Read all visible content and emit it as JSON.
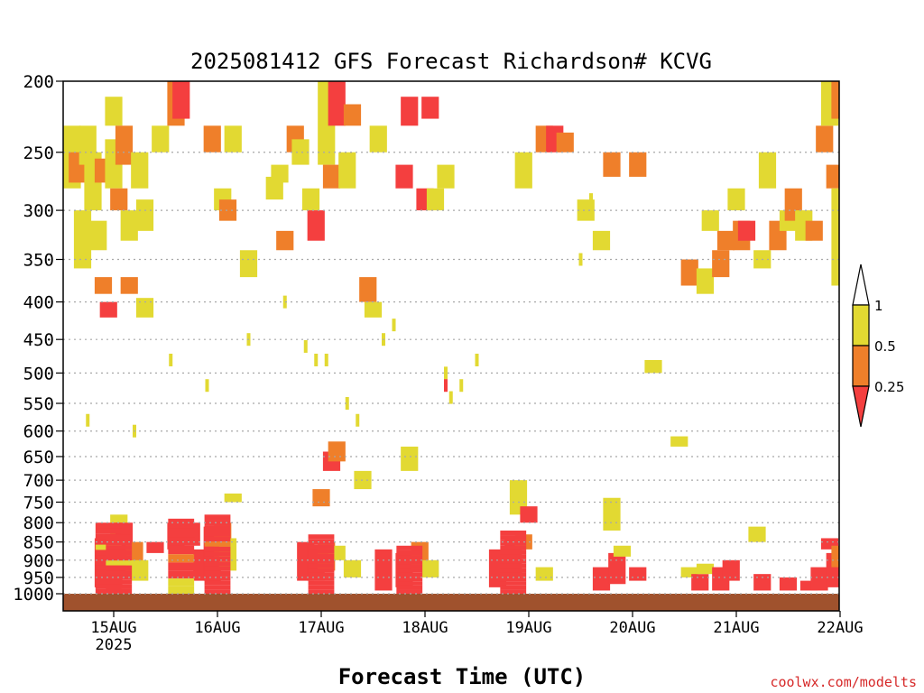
{
  "chart_data": {
    "type": "heatmap",
    "title": "2025081412 GFS Forecast Richardson# KCVG",
    "xlabel": "Forecast Time (UTC)",
    "ylabel": "",
    "credit": "coolwx.com/modelts",
    "y_scale": "log",
    "y_reversed": true,
    "ylim": [
      200,
      1000
    ],
    "y_ticks": [
      200,
      250,
      300,
      350,
      400,
      450,
      500,
      550,
      600,
      650,
      700,
      750,
      800,
      850,
      900,
      950,
      1000
    ],
    "x_ticks": [
      "15AUG",
      "16AUG",
      "17AUG",
      "18AUG",
      "19AUG",
      "20AUG",
      "21AUG",
      "22AUG"
    ],
    "x_tick_sublabel": "2025",
    "grid": "dotted horizontal at each pressure level",
    "colorbar": {
      "levels": [
        "1",
        "0.5",
        "0.25"
      ],
      "bins": [
        {
          "range": "0.5-1",
          "color": "#e2d932"
        },
        {
          "range": "0.25-0.5",
          "color": "#ef7f2a"
        },
        {
          "range": "<0.25",
          "color": "#f43f3f"
        }
      ],
      "upper_extension_color": "#ffffff",
      "lower_extension_color": "#f43f3f"
    },
    "ground_color": "#a0522d",
    "cells": [
      {
        "t": 14.6,
        "p1": 230,
        "p2": 280,
        "c": "y"
      },
      {
        "t": 14.65,
        "p1": 250,
        "p2": 275,
        "c": "o"
      },
      {
        "t": 14.7,
        "p1": 300,
        "p2": 360,
        "c": "y"
      },
      {
        "t": 14.75,
        "p1": 230,
        "p2": 260,
        "c": "y"
      },
      {
        "t": 14.8,
        "p1": 250,
        "p2": 300,
        "c": "y"
      },
      {
        "t": 14.85,
        "p1": 310,
        "p2": 340,
        "c": "y"
      },
      {
        "t": 14.9,
        "p1": 255,
        "p2": 275,
        "c": "o"
      },
      {
        "t": 14.9,
        "p1": 370,
        "p2": 390,
        "c": "o"
      },
      {
        "t": 14.95,
        "p1": 400,
        "p2": 420,
        "c": "r"
      },
      {
        "t": 15.0,
        "p1": 210,
        "p2": 230,
        "c": "y"
      },
      {
        "t": 15.0,
        "p1": 240,
        "p2": 280,
        "c": "y"
      },
      {
        "t": 15.05,
        "p1": 280,
        "p2": 300,
        "c": "o"
      },
      {
        "t": 15.1,
        "p1": 230,
        "p2": 260,
        "c": "o"
      },
      {
        "t": 15.15,
        "p1": 300,
        "p2": 330,
        "c": "y"
      },
      {
        "t": 15.15,
        "p1": 370,
        "p2": 390,
        "c": "o"
      },
      {
        "t": 15.25,
        "p1": 250,
        "p2": 280,
        "c": "y"
      },
      {
        "t": 15.3,
        "p1": 290,
        "p2": 320,
        "c": "y"
      },
      {
        "t": 15.3,
        "p1": 395,
        "p2": 420,
        "c": "y"
      },
      {
        "t": 15.45,
        "p1": 230,
        "p2": 250,
        "c": "y"
      },
      {
        "t": 15.6,
        "p1": 200,
        "p2": 230,
        "c": "o"
      },
      {
        "t": 15.65,
        "p1": 200,
        "p2": 225,
        "c": "r"
      },
      {
        "t": 15.95,
        "p1": 230,
        "p2": 250,
        "c": "o"
      },
      {
        "t": 16.05,
        "p1": 280,
        "p2": 300,
        "c": "y"
      },
      {
        "t": 16.1,
        "p1": 290,
        "p2": 310,
        "c": "o"
      },
      {
        "t": 16.15,
        "p1": 230,
        "p2": 250,
        "c": "y"
      },
      {
        "t": 16.3,
        "p1": 340,
        "p2": 370,
        "c": "y"
      },
      {
        "t": 16.55,
        "p1": 270,
        "p2": 290,
        "c": "y"
      },
      {
        "t": 16.6,
        "p1": 260,
        "p2": 275,
        "c": "y"
      },
      {
        "t": 16.65,
        "p1": 320,
        "p2": 340,
        "c": "o"
      },
      {
        "t": 16.75,
        "p1": 230,
        "p2": 250,
        "c": "o"
      },
      {
        "t": 16.8,
        "p1": 240,
        "p2": 260,
        "c": "y"
      },
      {
        "t": 16.9,
        "p1": 280,
        "p2": 300,
        "c": "y"
      },
      {
        "t": 16.95,
        "p1": 300,
        "p2": 330,
        "c": "r"
      },
      {
        "t": 17.05,
        "p1": 200,
        "p2": 260,
        "c": "y"
      },
      {
        "t": 17.1,
        "p1": 260,
        "p2": 280,
        "c": "o"
      },
      {
        "t": 17.15,
        "p1": 200,
        "p2": 230,
        "c": "r"
      },
      {
        "t": 17.25,
        "p1": 250,
        "p2": 280,
        "c": "y"
      },
      {
        "t": 17.3,
        "p1": 215,
        "p2": 230,
        "c": "o"
      },
      {
        "t": 17.45,
        "p1": 370,
        "p2": 400,
        "c": "o"
      },
      {
        "t": 17.5,
        "p1": 400,
        "p2": 420,
        "c": "y"
      },
      {
        "t": 17.55,
        "p1": 230,
        "p2": 250,
        "c": "y"
      },
      {
        "t": 17.8,
        "p1": 260,
        "p2": 280,
        "c": "r"
      },
      {
        "t": 17.85,
        "p1": 210,
        "p2": 230,
        "c": "r"
      },
      {
        "t": 18.0,
        "p1": 280,
        "p2": 300,
        "c": "r"
      },
      {
        "t": 18.05,
        "p1": 210,
        "p2": 225,
        "c": "r"
      },
      {
        "t": 18.1,
        "p1": 280,
        "p2": 300,
        "c": "y"
      },
      {
        "t": 18.2,
        "p1": 260,
        "p2": 280,
        "c": "y"
      },
      {
        "t": 18.95,
        "p1": 250,
        "p2": 280,
        "c": "y"
      },
      {
        "t": 19.15,
        "p1": 230,
        "p2": 250,
        "c": "o"
      },
      {
        "t": 19.25,
        "p1": 230,
        "p2": 250,
        "c": "r"
      },
      {
        "t": 19.35,
        "p1": 235,
        "p2": 250,
        "c": "o"
      },
      {
        "t": 19.55,
        "p1": 290,
        "p2": 310,
        "c": "y"
      },
      {
        "t": 19.7,
        "p1": 320,
        "p2": 340,
        "c": "y"
      },
      {
        "t": 19.8,
        "p1": 250,
        "p2": 270,
        "c": "o"
      },
      {
        "t": 20.05,
        "p1": 250,
        "p2": 270,
        "c": "o"
      },
      {
        "t": 20.2,
        "p1": 480,
        "p2": 500,
        "c": "y"
      },
      {
        "t": 20.55,
        "p1": 350,
        "p2": 380,
        "c": "o"
      },
      {
        "t": 20.7,
        "p1": 360,
        "p2": 390,
        "c": "y"
      },
      {
        "t": 20.75,
        "p1": 300,
        "p2": 320,
        "c": "y"
      },
      {
        "t": 20.85,
        "p1": 340,
        "p2": 370,
        "c": "o"
      },
      {
        "t": 20.9,
        "p1": 320,
        "p2": 340,
        "c": "o"
      },
      {
        "t": 21.0,
        "p1": 280,
        "p2": 300,
        "c": "y"
      },
      {
        "t": 21.05,
        "p1": 310,
        "p2": 340,
        "c": "o"
      },
      {
        "t": 21.1,
        "p1": 310,
        "p2": 330,
        "c": "r"
      },
      {
        "t": 21.25,
        "p1": 340,
        "p2": 360,
        "c": "y"
      },
      {
        "t": 21.3,
        "p1": 250,
        "p2": 280,
        "c": "y"
      },
      {
        "t": 21.4,
        "p1": 310,
        "p2": 340,
        "c": "o"
      },
      {
        "t": 21.5,
        "p1": 300,
        "p2": 320,
        "c": "y"
      },
      {
        "t": 21.55,
        "p1": 280,
        "p2": 310,
        "c": "o"
      },
      {
        "t": 21.65,
        "p1": 300,
        "p2": 330,
        "c": "y"
      },
      {
        "t": 21.75,
        "p1": 310,
        "p2": 330,
        "c": "o"
      },
      {
        "t": 21.85,
        "p1": 230,
        "p2": 250,
        "c": "o"
      },
      {
        "t": 21.9,
        "p1": 200,
        "p2": 230,
        "c": "y"
      },
      {
        "t": 21.95,
        "p1": 260,
        "p2": 280,
        "c": "o"
      },
      {
        "t": 22.0,
        "p1": 200,
        "p2": 225,
        "c": "o"
      },
      {
        "t": 22.0,
        "p1": 280,
        "p2": 380,
        "c": "y"
      },
      {
        "t": 14.9,
        "p1": 840,
        "p2": 980,
        "c": "r"
      },
      {
        "t": 15.0,
        "p1": 860,
        "p2": 980,
        "c": "r"
      },
      {
        "t": 15.05,
        "p1": 780,
        "p2": 860,
        "c": "y"
      },
      {
        "t": 15.1,
        "p1": 800,
        "p2": 950,
        "c": "r"
      },
      {
        "t": 15.2,
        "p1": 850,
        "p2": 930,
        "c": "o"
      },
      {
        "t": 15.25,
        "p1": 900,
        "p2": 960,
        "c": "y"
      },
      {
        "t": 15.4,
        "p1": 850,
        "p2": 880,
        "c": "r"
      },
      {
        "t": 15.6,
        "p1": 800,
        "p2": 870,
        "c": "r"
      },
      {
        "t": 15.75,
        "p1": 800,
        "p2": 860,
        "c": "r"
      },
      {
        "t": 15.85,
        "p1": 870,
        "p2": 960,
        "c": "r"
      },
      {
        "t": 15.95,
        "p1": 810,
        "p2": 960,
        "c": "r"
      },
      {
        "t": 16.05,
        "p1": 800,
        "p2": 900,
        "c": "o"
      },
      {
        "t": 16.1,
        "p1": 840,
        "p2": 930,
        "c": "y"
      },
      {
        "t": 16.15,
        "p1": 730,
        "p2": 750,
        "c": "y"
      },
      {
        "t": 16.85,
        "p1": 850,
        "p2": 960,
        "c": "r"
      },
      {
        "t": 16.95,
        "p1": 860,
        "p2": 960,
        "c": "r"
      },
      {
        "t": 17.0,
        "p1": 720,
        "p2": 760,
        "c": "o"
      },
      {
        "t": 17.05,
        "p1": 850,
        "p2": 930,
        "c": "o"
      },
      {
        "t": 17.1,
        "p1": 640,
        "p2": 680,
        "c": "r"
      },
      {
        "t": 17.15,
        "p1": 620,
        "p2": 660,
        "c": "o"
      },
      {
        "t": 17.15,
        "p1": 860,
        "p2": 900,
        "c": "y"
      },
      {
        "t": 17.3,
        "p1": 900,
        "p2": 950,
        "c": "y"
      },
      {
        "t": 17.4,
        "p1": 680,
        "p2": 720,
        "c": "y"
      },
      {
        "t": 17.6,
        "p1": 870,
        "p2": 990,
        "c": "r"
      },
      {
        "t": 17.8,
        "p1": 880,
        "p2": 980,
        "c": "r"
      },
      {
        "t": 17.85,
        "p1": 630,
        "p2": 680,
        "c": "y"
      },
      {
        "t": 17.95,
        "p1": 850,
        "p2": 930,
        "c": "o"
      },
      {
        "t": 18.05,
        "p1": 900,
        "p2": 950,
        "c": "y"
      },
      {
        "t": 18.7,
        "p1": 870,
        "p2": 980,
        "c": "r"
      },
      {
        "t": 18.85,
        "p1": 840,
        "p2": 960,
        "c": "r"
      },
      {
        "t": 18.95,
        "p1": 830,
        "p2": 870,
        "c": "o"
      },
      {
        "t": 18.9,
        "p1": 700,
        "p2": 780,
        "c": "y"
      },
      {
        "t": 19.0,
        "p1": 760,
        "p2": 800,
        "c": "r"
      },
      {
        "t": 19.15,
        "p1": 920,
        "p2": 960,
        "c": "y"
      },
      {
        "t": 19.7,
        "p1": 920,
        "p2": 990,
        "c": "r"
      },
      {
        "t": 19.8,
        "p1": 740,
        "p2": 820,
        "c": "y"
      },
      {
        "t": 19.85,
        "p1": 880,
        "p2": 970,
        "c": "r"
      },
      {
        "t": 19.9,
        "p1": 860,
        "p2": 890,
        "c": "y"
      },
      {
        "t": 20.05,
        "p1": 920,
        "p2": 960,
        "c": "r"
      },
      {
        "t": 20.45,
        "p1": 610,
        "p2": 630,
        "c": "y"
      },
      {
        "t": 20.55,
        "p1": 920,
        "p2": 950,
        "c": "y"
      },
      {
        "t": 20.65,
        "p1": 940,
        "p2": 990,
        "c": "r"
      },
      {
        "t": 20.7,
        "p1": 910,
        "p2": 940,
        "c": "y"
      },
      {
        "t": 20.85,
        "p1": 920,
        "p2": 990,
        "c": "r"
      },
      {
        "t": 20.95,
        "p1": 900,
        "p2": 960,
        "c": "r"
      },
      {
        "t": 21.2,
        "p1": 810,
        "p2": 850,
        "c": "y"
      },
      {
        "t": 21.25,
        "p1": 940,
        "p2": 990,
        "c": "r"
      },
      {
        "t": 21.5,
        "p1": 950,
        "p2": 990,
        "c": "r"
      },
      {
        "t": 21.7,
        "p1": 960,
        "p2": 990,
        "c": "r"
      },
      {
        "t": 21.8,
        "p1": 920,
        "p2": 990,
        "c": "r"
      },
      {
        "t": 21.9,
        "p1": 840,
        "p2": 870,
        "c": "r"
      },
      {
        "t": 21.95,
        "p1": 880,
        "p2": 980,
        "c": "r"
      },
      {
        "t": 22.0,
        "p1": 860,
        "p2": 920,
        "c": "o"
      }
    ],
    "stacks": [
      {
        "t": 14.95,
        "pTop": 800,
        "seg": [
          "r",
          "r",
          "r",
          "r",
          "y",
          "r",
          "r",
          "r",
          "r",
          "r",
          "r",
          "r",
          "r",
          "r"
        ]
      },
      {
        "t": 15.05,
        "pTop": 830,
        "seg": [
          "r",
          "r",
          "r",
          "r",
          "r",
          "y",
          "r",
          "r",
          "r",
          "r",
          "r",
          "r"
        ]
      },
      {
        "t": 15.65,
        "pTop": 790,
        "seg": [
          "r",
          "r",
          "r",
          "r",
          "o",
          "r",
          "r",
          "y",
          "y"
        ]
      },
      {
        "t": 16.0,
        "pTop": 780,
        "seg": [
          "r",
          "r",
          "r",
          "r",
          "r",
          "o",
          "r",
          "r",
          "r",
          "r",
          "r",
          "r",
          "r",
          "r",
          "r",
          "r"
        ]
      },
      {
        "t": 17.0,
        "pTop": 830,
        "seg": [
          "r",
          "r",
          "r",
          "r",
          "r",
          "r",
          "r",
          "r",
          "r",
          "r",
          "r",
          "r",
          "r"
        ]
      },
      {
        "t": 17.85,
        "pTop": 860,
        "seg": [
          "r",
          "r",
          "r",
          "r",
          "r",
          "r",
          "r",
          "r",
          "r",
          "r",
          "r"
        ]
      },
      {
        "t": 18.85,
        "pTop": 820,
        "seg": [
          "r",
          "r",
          "r",
          "r",
          "r",
          "r",
          "r",
          "r",
          "r",
          "r",
          "r",
          "r",
          "r",
          "r"
        ]
      }
    ],
    "specks": [
      {
        "t": 14.75,
        "p": 580,
        "c": "y"
      },
      {
        "t": 15.2,
        "p": 600,
        "c": "y"
      },
      {
        "t": 15.55,
        "p": 480,
        "c": "y"
      },
      {
        "t": 15.9,
        "p": 520,
        "c": "y"
      },
      {
        "t": 16.3,
        "p": 450,
        "c": "y"
      },
      {
        "t": 16.65,
        "p": 400,
        "c": "y"
      },
      {
        "t": 16.85,
        "p": 460,
        "c": "y"
      },
      {
        "t": 16.95,
        "p": 480,
        "c": "y"
      },
      {
        "t": 17.05,
        "p": 480,
        "c": "y"
      },
      {
        "t": 17.25,
        "p": 550,
        "c": "y"
      },
      {
        "t": 17.35,
        "p": 580,
        "c": "y"
      },
      {
        "t": 17.6,
        "p": 450,
        "c": "y"
      },
      {
        "t": 17.7,
        "p": 430,
        "c": "y"
      },
      {
        "t": 18.2,
        "p": 500,
        "c": "y"
      },
      {
        "t": 18.2,
        "p": 520,
        "c": "r"
      },
      {
        "t": 18.25,
        "p": 540,
        "c": "y"
      },
      {
        "t": 18.35,
        "p": 520,
        "c": "y"
      },
      {
        "t": 18.5,
        "p": 480,
        "c": "y"
      },
      {
        "t": 19.5,
        "p": 350,
        "c": "y"
      },
      {
        "t": 19.6,
        "p": 290,
        "c": "y"
      }
    ]
  }
}
